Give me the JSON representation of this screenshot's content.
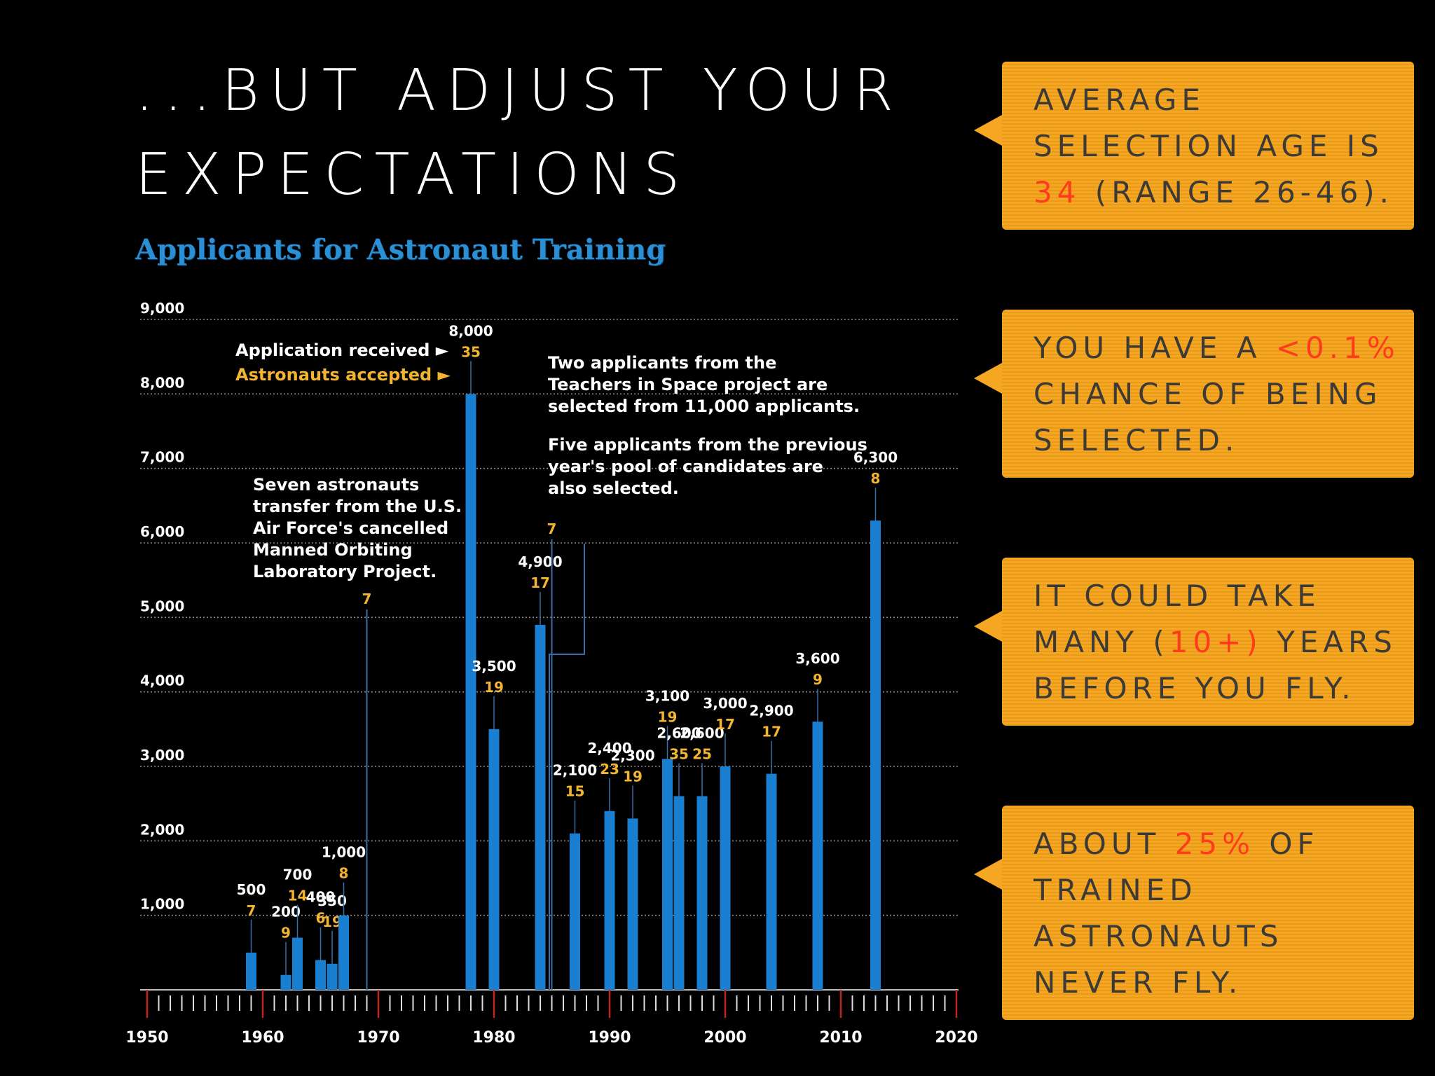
{
  "slide": {
    "title_line1": "...BUT ADJUST YOUR",
    "title_line2": "EXPECTATIONS"
  },
  "callouts": [
    {
      "before": "AVERAGE SELECTION AGE IS ",
      "highlight": "34",
      "after": " (RANGE 26-46)."
    },
    {
      "before": "YOU HAVE A ",
      "highlight": "<0.1%",
      "after": " CHANCE OF BEING SELECTED."
    },
    {
      "before": "IT COULD TAKE MANY (",
      "highlight": "10+)",
      "after": " YEARS BEFORE YOU FLY."
    },
    {
      "before": "ABOUT ",
      "highlight": "25%",
      "after": " OF TRAINED ASTRONAUTS NEVER FLY."
    }
  ],
  "colors": {
    "bar": "#1a7fd1",
    "accepted": "#f2b431",
    "callout_bg": "#f5a623",
    "highlight": "#ff3b1d",
    "axis_tick": "#c0281c",
    "chart_title": "#2b8fd6"
  },
  "chart_data": {
    "type": "bar",
    "title": "Applicants for Astronaut Training",
    "xlabel": "",
    "ylabel": "",
    "xlim": [
      1950,
      2020
    ],
    "ylim": [
      0,
      9000
    ],
    "y_ticks": [
      1000,
      2000,
      3000,
      4000,
      5000,
      6000,
      7000,
      8000,
      9000
    ],
    "y_tick_labels": [
      "1,000",
      "2,000",
      "3,000",
      "4,000",
      "5,000",
      "6,000",
      "7,000",
      "8,000",
      "9,000"
    ],
    "x_ticks": [
      1950,
      1960,
      1970,
      1980,
      1990,
      2000,
      2010,
      2020
    ],
    "x_tick_labels": [
      "1950",
      "1960",
      "1970",
      "1980",
      "1990",
      "2000",
      "2010",
      "2020"
    ],
    "series": [
      {
        "name": "Application received",
        "values": [
          500,
          200,
          700,
          400,
          350,
          1000,
          8000,
          3500,
          4900,
          2100,
          2400,
          2300,
          3100,
          2600,
          2600,
          3000,
          2900,
          3600,
          6300
        ]
      },
      {
        "name": "Astronauts accepted",
        "values": [
          7,
          9,
          14,
          6,
          19,
          8,
          35,
          19,
          17,
          15,
          23,
          19,
          19,
          35,
          25,
          17,
          17,
          9,
          8
        ]
      }
    ],
    "years": [
      1959,
      1962,
      1963,
      1965,
      1966,
      1967,
      1978,
      1980,
      1984,
      1987,
      1990,
      1992,
      1995,
      1996,
      1998,
      2000,
      2004,
      2008,
      2013
    ],
    "received_labels": [
      "500",
      "200",
      "700",
      "400",
      "350",
      "1,000",
      "8,000",
      "3,500",
      "4,900",
      "2,100",
      "2,400",
      "2,300",
      "3,100",
      "2,600",
      "2,600",
      "3,000",
      "2,900",
      "3,600",
      "6,300"
    ],
    "no_bar_points": [
      {
        "year": 1969,
        "accepted": 7
      },
      {
        "year": 1985,
        "accepted": 7
      }
    ],
    "legend": {
      "received_label": "Application received",
      "accepted_label": "Astronauts accepted",
      "arrow": "►",
      "position": "top-left"
    },
    "annotations": [
      {
        "lines": [
          "Seven astronauts",
          "transfer from the U.S.",
          "Air Force's cancelled",
          "Manned Orbiting",
          "Laboratory Project."
        ]
      },
      {
        "lines": [
          "Two applicants from the",
          "Teachers in Space project are",
          "selected from 11,000 applicants."
        ]
      },
      {
        "lines": [
          "Five applicants from the previous",
          "year's pool of candidates are",
          "also selected."
        ]
      }
    ]
  }
}
